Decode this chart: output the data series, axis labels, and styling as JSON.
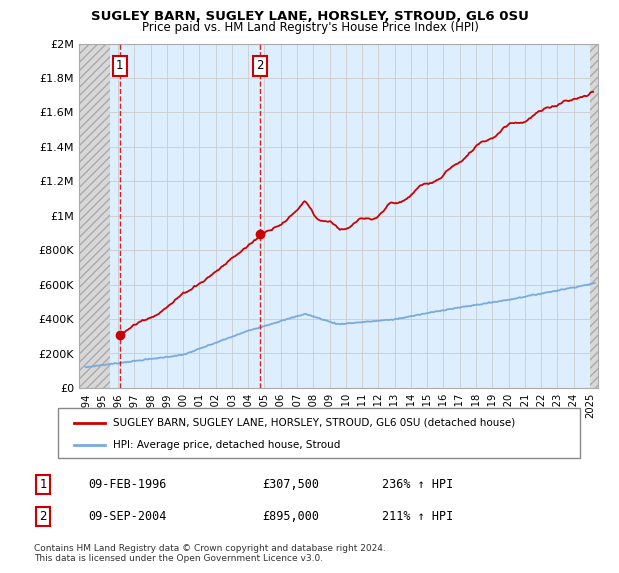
{
  "title1": "SUGLEY BARN, SUGLEY LANE, HORSLEY, STROUD, GL6 0SU",
  "title2": "Price paid vs. HM Land Registry's House Price Index (HPI)",
  "ylabel_ticks": [
    "£0",
    "£200K",
    "£400K",
    "£600K",
    "£800K",
    "£1M",
    "£1.2M",
    "£1.4M",
    "£1.6M",
    "£1.8M",
    "£2M"
  ],
  "ylabel_values": [
    0,
    200000,
    400000,
    600000,
    800000,
    1000000,
    1200000,
    1400000,
    1600000,
    1800000,
    2000000
  ],
  "xlim_min": 1993.6,
  "xlim_max": 2025.5,
  "ylim_min": 0,
  "ylim_max": 2000000,
  "legend_line1": "SUGLEY BARN, SUGLEY LANE, HORSLEY, STROUD, GL6 0SU (detached house)",
  "legend_line2": "HPI: Average price, detached house, Stroud",
  "transaction1_label": "1",
  "transaction1_date": "09-FEB-1996",
  "transaction1_price": "£307,500",
  "transaction1_hpi": "236% ↑ HPI",
  "transaction1_x": 1996.1,
  "transaction1_y": 307500,
  "transaction2_label": "2",
  "transaction2_date": "09-SEP-2004",
  "transaction2_price": "£895,000",
  "transaction2_hpi": "211% ↑ HPI",
  "transaction2_x": 2004.7,
  "transaction2_y": 895000,
  "footer": "Contains HM Land Registry data © Crown copyright and database right 2024.\nThis data is licensed under the Open Government Licence v3.0.",
  "red_color": "#cc0000",
  "blue_color": "#7aaadd",
  "grid_color": "#cccccc",
  "plot_bg": "#ddeeff",
  "hatch_bg": "#d8d8d8",
  "xticks": [
    1994,
    1995,
    1996,
    1997,
    1998,
    1999,
    2000,
    2001,
    2002,
    2003,
    2004,
    2005,
    2006,
    2007,
    2008,
    2009,
    2010,
    2011,
    2012,
    2013,
    2014,
    2015,
    2016,
    2017,
    2018,
    2019,
    2020,
    2021,
    2022,
    2023,
    2024,
    2025
  ]
}
